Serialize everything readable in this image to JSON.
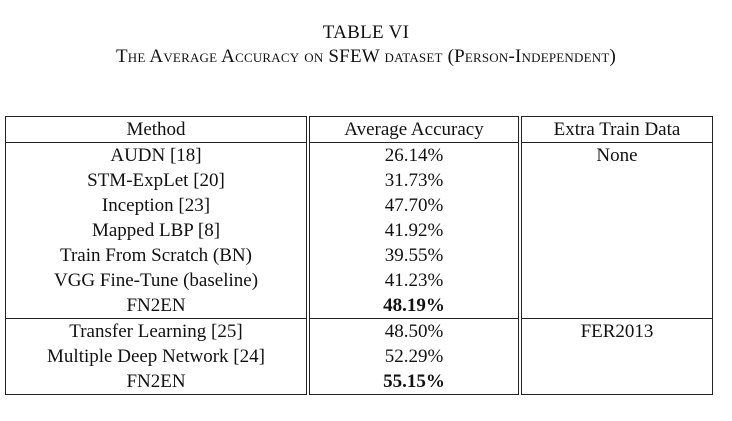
{
  "caption": {
    "title": "TABLE VI",
    "subtitle": "The Average Accuracy on SFEW dataset (Person-Independent)"
  },
  "table": {
    "headers": [
      "Method",
      "Average Accuracy",
      "Extra Train Data"
    ],
    "groups": [
      {
        "rows": [
          {
            "method": "AUDN [18]",
            "accuracy": "26.14%",
            "extra": "None",
            "bold": false
          },
          {
            "method": "STM-ExpLet [20]",
            "accuracy": "31.73%",
            "extra": "",
            "bold": false
          },
          {
            "method": "Inception [23]",
            "accuracy": "47.70%",
            "extra": "",
            "bold": false
          },
          {
            "method": "Mapped LBP [8]",
            "accuracy": "41.92%",
            "extra": "",
            "bold": false
          },
          {
            "method": "Train From Scratch (BN)",
            "accuracy": "39.55%",
            "extra": "",
            "bold": false
          },
          {
            "method": "VGG Fine-Tune (baseline)",
            "accuracy": "41.23%",
            "extra": "",
            "bold": false
          },
          {
            "method": "FN2EN",
            "accuracy": "48.19%",
            "extra": "",
            "bold": true
          }
        ]
      },
      {
        "rows": [
          {
            "method": "Transfer Learning [25]",
            "accuracy": "48.50%",
            "extra": "FER2013",
            "bold": false
          },
          {
            "method": "Multiple Deep Network [24]",
            "accuracy": "52.29%",
            "extra": "",
            "bold": false
          },
          {
            "method": "FN2EN",
            "accuracy": "55.15%",
            "extra": "",
            "bold": true
          }
        ]
      }
    ]
  }
}
